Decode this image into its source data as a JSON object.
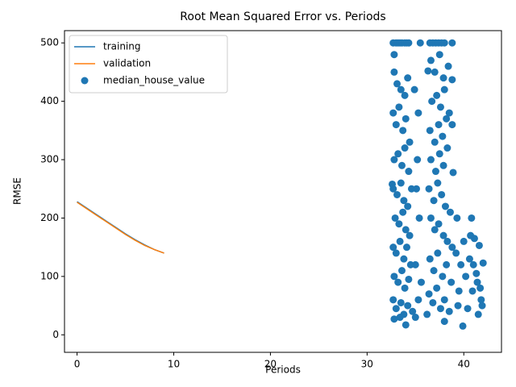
{
  "chart_data": {
    "type": "line",
    "title": "Root Mean Squared Error vs. Periods",
    "x_label": "Periods",
    "y_label": "RMSE",
    "xlim": [
      -1.3,
      43.9
    ],
    "ylim": [
      -30,
      521
    ],
    "xticks": [
      0,
      10,
      20,
      30,
      40
    ],
    "yticks": [
      0,
      100,
      200,
      300,
      400,
      500
    ],
    "legend": "upper left",
    "series": [
      {
        "name": "training",
        "type": "line",
        "color": "#1f77b4",
        "x": [
          0,
          1,
          2,
          3,
          4,
          5,
          6,
          7,
          8,
          9
        ],
        "values": [
          228,
          217,
          206,
          195,
          184,
          173,
          163,
          154,
          146,
          140
        ]
      },
      {
        "name": "validation",
        "type": "line",
        "color": "#ff7f0e",
        "x": [
          0,
          1,
          2,
          3,
          4,
          5,
          6,
          7,
          8,
          9
        ],
        "values": [
          227,
          216,
          205,
          194,
          183,
          172,
          162,
          153,
          146,
          140
        ]
      },
      {
        "name": "median_house_value",
        "type": "scatter",
        "color": "#1f77b4",
        "x": [
          32.7,
          32.8,
          33.0,
          33.2,
          33.4,
          33.6,
          33.9,
          34.1,
          34.3,
          32.8,
          33.1,
          33.5,
          33.9,
          34.2,
          32.7,
          33.0,
          33.3,
          33.7,
          34.0,
          34.4,
          32.8,
          33.2,
          33.6,
          33.9,
          34.3,
          32.7,
          33.1,
          33.5,
          33.8,
          34.2,
          34.6,
          32.9,
          33.3,
          33.7,
          34.0,
          34.4,
          32.7,
          33.0,
          33.4,
          33.8,
          34.1,
          34.5,
          32.8,
          33.2,
          33.6,
          33.9,
          34.3,
          32.7,
          33.0,
          33.5,
          33.8,
          34.2,
          32.8,
          33.4,
          34.0,
          34.7,
          35.0,
          35.2,
          35.3,
          35.5,
          34.9,
          35.1,
          35.4,
          35.0,
          35.6,
          35.3,
          32.6,
          36.5,
          36.8,
          37.1,
          37.4,
          37.7,
          38.0,
          38.8,
          36.6,
          37.0,
          37.5,
          37.9,
          38.4,
          38.8,
          36.3,
          36.7,
          37.2,
          37.6,
          38.0,
          38.5,
          36.5,
          37.0,
          37.4,
          37.8,
          38.2,
          38.8,
          36.6,
          37.1,
          37.5,
          37.9,
          38.3,
          38.9,
          36.4,
          36.9,
          37.3,
          37.7,
          38.1,
          38.6,
          36.6,
          37.0,
          37.4,
          37.9,
          38.3,
          38.8,
          39.3,
          36.5,
          36.9,
          37.3,
          37.8,
          38.2,
          38.7,
          39.2,
          36.4,
          36.8,
          37.2,
          37.6,
          38.0,
          38.5,
          38.0,
          36.2,
          39.5,
          39.9,
          40.2,
          40.6,
          40.8,
          41.1,
          40.7,
          41.0,
          41.4,
          41.8,
          42.0,
          41.6,
          40.4,
          41.5,
          41.9,
          40.0,
          39.7,
          39.4,
          40.9,
          41.3,
          41.7
        ],
        "values": [
          500,
          480,
          500,
          500,
          500,
          500,
          500,
          500,
          500,
          450,
          430,
          420,
          410,
          440,
          380,
          360,
          390,
          350,
          370,
          330,
          300,
          310,
          290,
          320,
          280,
          250,
          240,
          260,
          230,
          220,
          250,
          200,
          190,
          210,
          180,
          170,
          150,
          140,
          160,
          130,
          150,
          120,
          100,
          90,
          110,
          80,
          95,
          60,
          45,
          55,
          35,
          50,
          27,
          30,
          17,
          40,
          30,
          300,
          380,
          500,
          420,
          250,
          200,
          120,
          90,
          60,
          258,
          500,
          500,
          500,
          500,
          500,
          500,
          500,
          470,
          450,
          480,
          440,
          460,
          437,
          452,
          400,
          410,
          390,
          420,
          380,
          350,
          330,
          360,
          340,
          370,
          360,
          300,
          280,
          310,
          290,
          320,
          278,
          250,
          230,
          260,
          240,
          220,
          210,
          200,
          180,
          190,
          170,
          160,
          150,
          200,
          130,
          110,
          140,
          100,
          120,
          90,
          140,
          70,
          55,
          80,
          45,
          60,
          40,
          23,
          35,
          75,
          15,
          100,
          130,
          200,
          165,
          170,
          120,
          90,
          60,
          123,
          153,
          45,
          35,
          50,
          160,
          120,
          50,
          75,
          105,
          80
        ]
      }
    ]
  }
}
